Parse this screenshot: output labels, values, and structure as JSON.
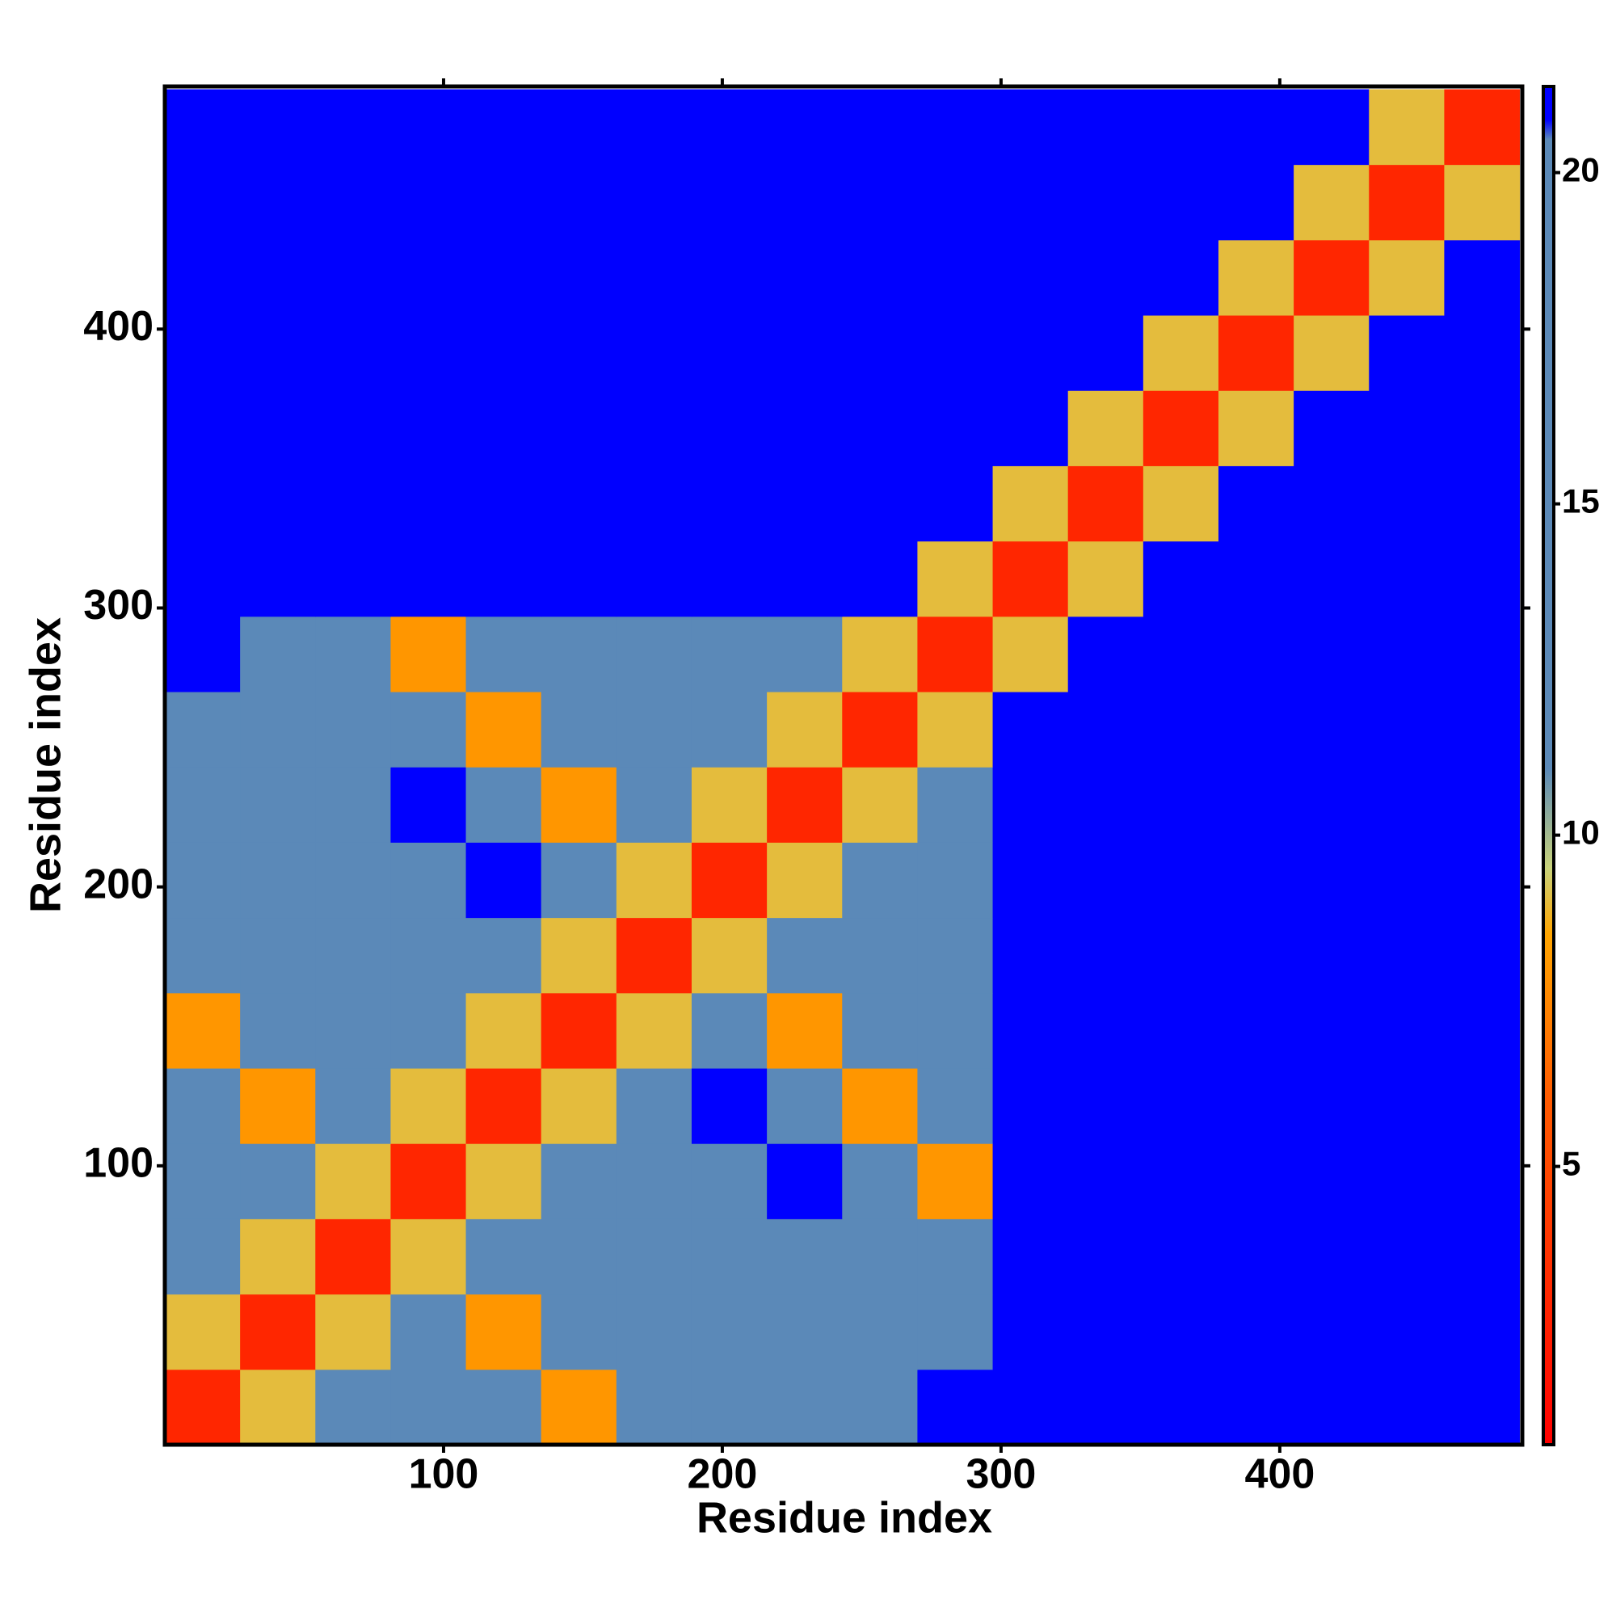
{
  "chart_data": {
    "type": "heatmap",
    "xlabel": "Residue index",
    "ylabel": "Residue index",
    "xbins": [
      0,
      27,
      54,
      81,
      108,
      135,
      162,
      189,
      216,
      243,
      270,
      297,
      324,
      351,
      378,
      405,
      432,
      459,
      486
    ],
    "ybins": [
      0,
      27,
      54,
      81,
      108,
      135,
      162,
      189,
      216,
      243,
      270,
      297,
      324,
      351,
      378,
      405,
      432,
      459,
      486
    ],
    "xlim": [
      0,
      487
    ],
    "ylim": [
      0,
      487
    ],
    "xticks": [
      100,
      200,
      300,
      400
    ],
    "yticks": [
      100,
      200,
      300,
      400
    ],
    "zlim": [
      0.8,
      21.3
    ],
    "zticks": [
      5,
      10,
      15,
      20
    ],
    "colorscale": [
      [
        0.8,
        "#ff0000"
      ],
      [
        6,
        "#ff5a00"
      ],
      [
        8.5,
        "#ffa500"
      ],
      [
        9.5,
        "#c8d27a"
      ],
      [
        11,
        "#5b89b8"
      ],
      [
        20.5,
        "#5b89b8"
      ],
      [
        20.8,
        "#0000ff"
      ],
      [
        21.3,
        "#0000ff"
      ]
    ],
    "z": [
      [
        3,
        9,
        16,
        16,
        16,
        8,
        16,
        16,
        16,
        16,
        21,
        21,
        21,
        21,
        21,
        21,
        21,
        21
      ],
      [
        9,
        3,
        9,
        16,
        8,
        16,
        16,
        16,
        16,
        16,
        16,
        21,
        21,
        21,
        21,
        21,
        21,
        21
      ],
      [
        16,
        9,
        3,
        9,
        16,
        16,
        16,
        16,
        16,
        16,
        16,
        21,
        21,
        21,
        21,
        21,
        21,
        21
      ],
      [
        16,
        16,
        9,
        3,
        9,
        16,
        16,
        16,
        21,
        16,
        8,
        21,
        21,
        21,
        21,
        21,
        21,
        21
      ],
      [
        16,
        8,
        16,
        9,
        3,
        9,
        16,
        21,
        16,
        8,
        16,
        21,
        21,
        21,
        21,
        21,
        21,
        21
      ],
      [
        8,
        16,
        16,
        16,
        9,
        3,
        9,
        16,
        8,
        16,
        16,
        21,
        21,
        21,
        21,
        21,
        21,
        21
      ],
      [
        16,
        16,
        16,
        16,
        16,
        9,
        3,
        9,
        16,
        16,
        16,
        21,
        21,
        21,
        21,
        21,
        21,
        21
      ],
      [
        16,
        16,
        16,
        16,
        21,
        16,
        9,
        3,
        9,
        16,
        16,
        21,
        21,
        21,
        21,
        21,
        21,
        21
      ],
      [
        16,
        16,
        16,
        21,
        16,
        8,
        16,
        9,
        3,
        9,
        16,
        21,
        21,
        21,
        21,
        21,
        21,
        21
      ],
      [
        16,
        16,
        16,
        16,
        8,
        16,
        16,
        16,
        9,
        3,
        9,
        21,
        21,
        21,
        21,
        21,
        21,
        21
      ],
      [
        21,
        16,
        16,
        8,
        16,
        16,
        16,
        16,
        16,
        9,
        3,
        9,
        21,
        21,
        21,
        21,
        21,
        21
      ],
      [
        21,
        21,
        21,
        21,
        21,
        21,
        21,
        21,
        21,
        21,
        9,
        3,
        9,
        21,
        21,
        21,
        21,
        21
      ],
      [
        21,
        21,
        21,
        21,
        21,
        21,
        21,
        21,
        21,
        21,
        21,
        9,
        3,
        9,
        21,
        21,
        21,
        21
      ],
      [
        21,
        21,
        21,
        21,
        21,
        21,
        21,
        21,
        21,
        21,
        21,
        21,
        9,
        3,
        9,
        21,
        21,
        21
      ],
      [
        21,
        21,
        21,
        21,
        21,
        21,
        21,
        21,
        21,
        21,
        21,
        21,
        21,
        9,
        3,
        9,
        21,
        21
      ],
      [
        21,
        21,
        21,
        21,
        21,
        21,
        21,
        21,
        21,
        21,
        21,
        21,
        21,
        21,
        9,
        3,
        9,
        21
      ],
      [
        21,
        21,
        21,
        21,
        21,
        21,
        21,
        21,
        21,
        21,
        21,
        21,
        21,
        21,
        21,
        9,
        3,
        9
      ],
      [
        21,
        21,
        21,
        21,
        21,
        21,
        21,
        21,
        21,
        21,
        21,
        21,
        21,
        21,
        21,
        21,
        9,
        3
      ]
    ]
  }
}
